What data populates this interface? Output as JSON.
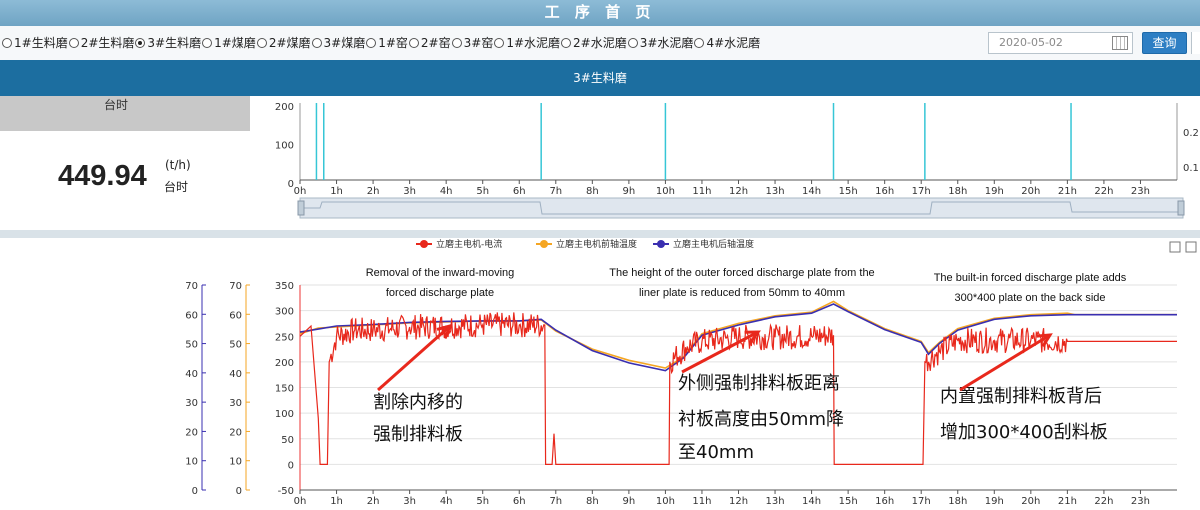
{
  "header": {
    "title": "工 序 首 页"
  },
  "selector": {
    "mills": [
      {
        "label": "1#生料磨",
        "selected": false
      },
      {
        "label": "2#生料磨",
        "selected": false
      },
      {
        "label": "3#生料磨",
        "selected": true
      },
      {
        "label": "1#煤磨",
        "selected": false
      },
      {
        "label": "2#煤磨",
        "selected": false
      },
      {
        "label": "3#煤磨",
        "selected": false
      },
      {
        "label": "1#窑",
        "selected": false
      },
      {
        "label": "2#窑",
        "selected": false
      },
      {
        "label": "3#窑",
        "selected": false
      },
      {
        "label": "1#水泥磨",
        "selected": false
      },
      {
        "label": "2#水泥磨",
        "selected": false
      },
      {
        "label": "3#水泥磨",
        "selected": false
      },
      {
        "label": "4#水泥磨",
        "selected": false
      }
    ],
    "date_value": "2020-05-02",
    "query_label": "查询"
  },
  "tab": {
    "label": "3#生料磨"
  },
  "summary": {
    "top_label": "台时",
    "value": "449.94",
    "unit": "(t/h)",
    "unit_label": "台时"
  },
  "hours": [
    "0h",
    "1h",
    "2h",
    "3h",
    "4h",
    "5h",
    "6h",
    "7h",
    "8h",
    "9h",
    "10h",
    "11h",
    "12h",
    "13h",
    "14h",
    "15h",
    "16h",
    "17h",
    "18h",
    "19h",
    "20h",
    "21h",
    "22h",
    "23h"
  ],
  "chart_data": [
    {
      "type": "line",
      "yticks_left": [
        "200",
        "100",
        "0"
      ],
      "yticks_right": [
        "0.2",
        "0.1"
      ],
      "ylim": [
        0,
        200
      ],
      "spikes_x_hours": [
        0.45,
        0.65,
        6.6,
        10.0,
        14.6,
        17.1,
        21.1
      ],
      "grid": false
    },
    {
      "type": "line",
      "legend": [
        "立磨主电机-电流",
        "立磨主电机前轴温度",
        "立磨主电机后轴温度"
      ],
      "legend_position": "top",
      "colors": [
        "#e8281c",
        "#f5a623",
        "#3a2fb0"
      ],
      "ylim": [
        -50,
        350
      ],
      "yticks_main": [
        "350",
        "300",
        "250",
        "200",
        "150",
        "100",
        "50",
        "0",
        "-50"
      ],
      "yticks_temp_orange": [
        "70",
        "60",
        "50",
        "40",
        "30",
        "20",
        "10",
        "0"
      ],
      "yticks_temp_blue": [
        "70",
        "60",
        "50",
        "40",
        "30",
        "20",
        "10",
        "0"
      ],
      "grid": true,
      "series": [
        {
          "name": "立磨主电机-电流",
          "points": [
            [
              0,
              250
            ],
            [
              0.3,
              270
            ],
            [
              0.5,
              90
            ],
            [
              0.55,
              0
            ],
            [
              0.65,
              0
            ],
            [
              0.75,
              0
            ],
            [
              0.8,
              200
            ],
            [
              1.0,
              250
            ],
            [
              1.5,
              262
            ],
            [
              2,
              262
            ],
            [
              3,
              268
            ],
            [
              4,
              270
            ],
            [
              5,
              272
            ],
            [
              6,
              272
            ],
            [
              6.7,
              272
            ],
            [
              6.72,
              0
            ],
            [
              6.9,
              0
            ],
            [
              6.95,
              60
            ],
            [
              7.0,
              0
            ],
            [
              7.5,
              0
            ],
            [
              9,
              0
            ],
            [
              10,
              0
            ],
            [
              10.1,
              0
            ],
            [
              10.12,
              200
            ],
            [
              10.6,
              230
            ],
            [
              11,
              240
            ],
            [
              12,
              248
            ],
            [
              13,
              248
            ],
            [
              14,
              250
            ],
            [
              14.6,
              252
            ],
            [
              14.62,
              0
            ],
            [
              15,
              0
            ],
            [
              16,
              0
            ],
            [
              17.0,
              0
            ],
            [
              17.05,
              0
            ],
            [
              17.1,
              200
            ],
            [
              17.5,
              220
            ],
            [
              18,
              242
            ],
            [
              19,
              242
            ],
            [
              20,
              242
            ],
            [
              21,
              240
            ],
            [
              21.2,
              240
            ],
            [
              24,
              240
            ]
          ],
          "noisy_ranges": [
            [
              0.8,
              6.7
            ],
            [
              10.12,
              14.6
            ],
            [
              17.1,
              21.0
            ]
          ]
        },
        {
          "name": "立磨主电机前轴温度",
          "points": [
            [
              0,
              255
            ],
            [
              0.5,
              266
            ],
            [
              1,
              268
            ],
            [
              2,
              272
            ],
            [
              3,
              276
            ],
            [
              4,
              278
            ],
            [
              5,
              280
            ],
            [
              6,
              280
            ],
            [
              6.6,
              282
            ],
            [
              7,
              260
            ],
            [
              8,
              225
            ],
            [
              9,
              203
            ],
            [
              10,
              188
            ],
            [
              10.5,
              210
            ],
            [
              11,
              255
            ],
            [
              12,
              275
            ],
            [
              13,
              290
            ],
            [
              14,
              297
            ],
            [
              14.6,
              318
            ],
            [
              15,
              300
            ],
            [
              16,
              265
            ],
            [
              17,
              240
            ],
            [
              17.2,
              218
            ],
            [
              17.5,
              238
            ],
            [
              18,
              265
            ],
            [
              19,
              285
            ],
            [
              20,
              292
            ],
            [
              21,
              295
            ],
            [
              21.2,
              292
            ],
            [
              24,
              292
            ]
          ]
        },
        {
          "name": "立磨主电机后轴温度",
          "points": [
            [
              0,
              258
            ],
            [
              0.5,
              264
            ],
            [
              1,
              270
            ],
            [
              2,
              273
            ],
            [
              3,
              277
            ],
            [
              4,
              279
            ],
            [
              5,
              280
            ],
            [
              6,
              280
            ],
            [
              6.6,
              283
            ],
            [
              7,
              262
            ],
            [
              8,
              222
            ],
            [
              9,
              198
            ],
            [
              10,
              183
            ],
            [
              10.5,
              208
            ],
            [
              11,
              252
            ],
            [
              12,
              272
            ],
            [
              13,
              288
            ],
            [
              14,
              295
            ],
            [
              14.6,
              313
            ],
            [
              15,
              298
            ],
            [
              16,
              263
            ],
            [
              17,
              238
            ],
            [
              17.2,
              215
            ],
            [
              17.5,
              236
            ],
            [
              18,
              262
            ],
            [
              19,
              283
            ],
            [
              20,
              290
            ],
            [
              21,
              292
            ],
            [
              21.2,
              292
            ],
            [
              24,
              292
            ]
          ]
        }
      ],
      "annotations": [
        {
          "en": [
            "Removal of the inward-moving",
            "forced discharge plate"
          ],
          "cn": [
            "割除内移的",
            "强制排料板"
          ]
        },
        {
          "en": [
            "The height of the outer forced discharge plate from the",
            "liner plate is reduced from 50mm to 40mm"
          ],
          "cn": [
            "外侧强制排料板距离",
            "衬板高度由50mm降",
            "至40mm"
          ]
        },
        {
          "en": [
            "The built-in forced discharge plate adds",
            "300*400 plate on the back side"
          ],
          "cn": [
            "内置强制排料板背后",
            "增加300*400刮料板"
          ]
        }
      ]
    }
  ]
}
